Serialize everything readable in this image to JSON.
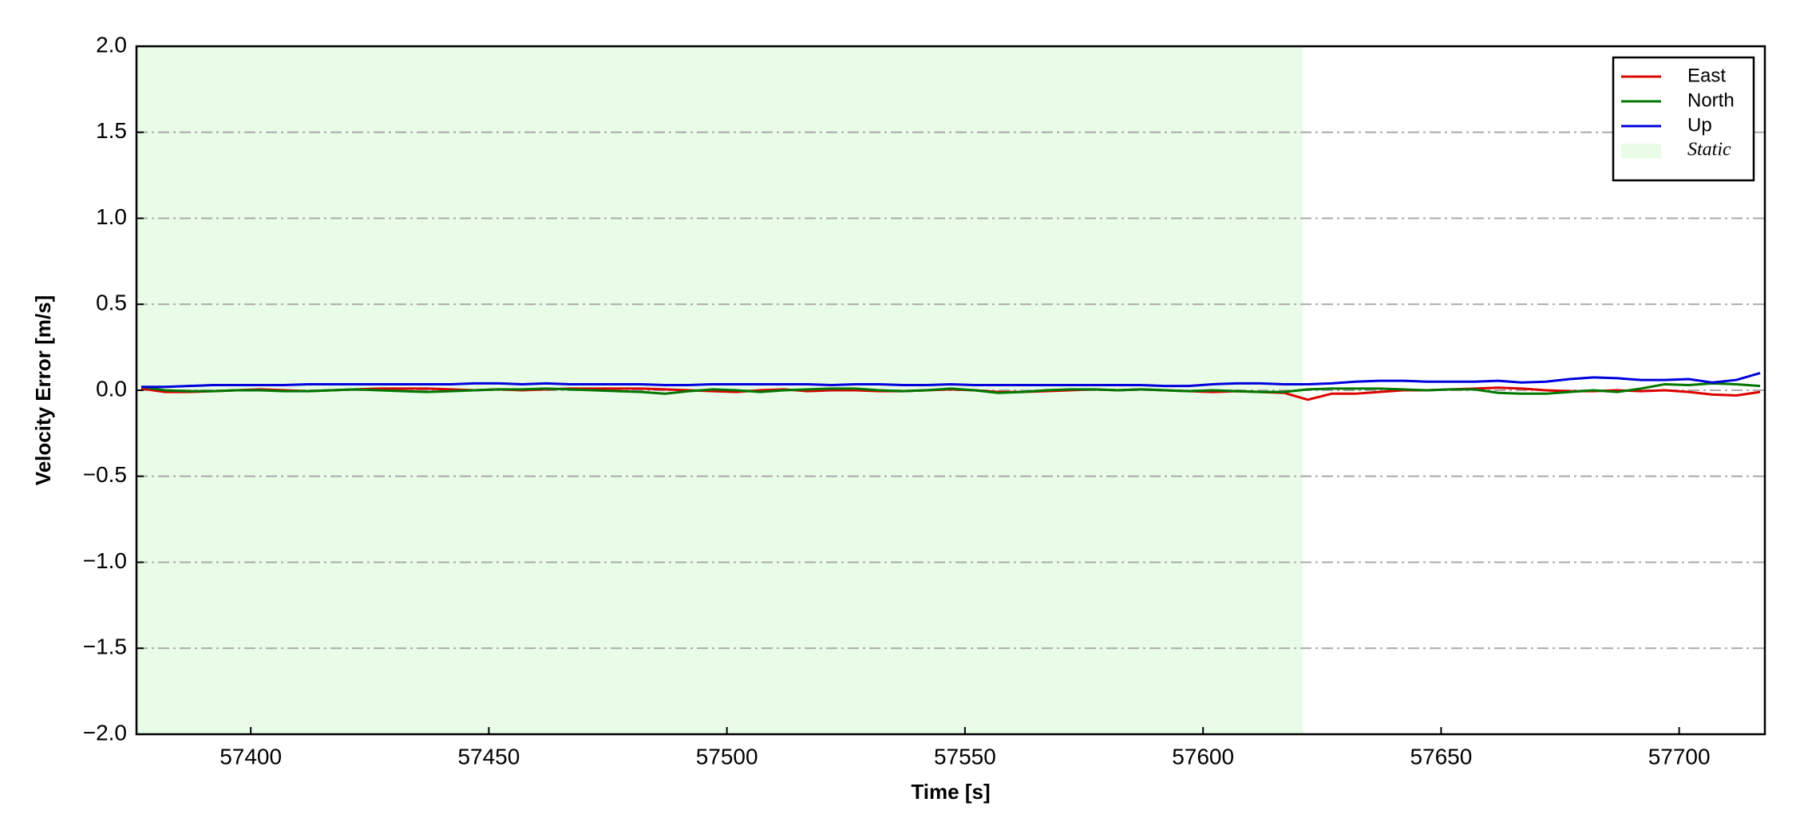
{
  "chart_data": {
    "type": "line",
    "xlabel": "Time [s]",
    "ylabel": "Velocity Error [m/s]",
    "xlim": [
      57376,
      57718
    ],
    "ylim": [
      -2,
      2
    ],
    "xticks": [
      57400,
      57450,
      57500,
      57550,
      57600,
      57650,
      57700
    ],
    "yticks": [
      {
        "value": 2,
        "label": "2.0"
      },
      1.5,
      {
        "value": 1,
        "label": "1.0"
      },
      0.5,
      {
        "value": 0,
        "label": "0.0"
      },
      {
        "value": -0.5,
        "label": "−0.5"
      },
      {
        "value": -1,
        "label": "−1.0"
      },
      {
        "value": -1.5,
        "label": "−1.5"
      },
      {
        "value": -2,
        "label": "−2.0"
      }
    ],
    "grid": true,
    "legend": "upper right",
    "static_region": {
      "label": "Static",
      "x": [
        57376,
        57621
      ],
      "color": "#e8fce8"
    },
    "x": [
      57377,
      57382,
      57387,
      57392,
      57397,
      57402,
      57407,
      57412,
      57417,
      57422,
      57427,
      57432,
      57437,
      57442,
      57447,
      57452,
      57457,
      57462,
      57467,
      57472,
      57477,
      57482,
      57487,
      57492,
      57497,
      57502,
      57507,
      57512,
      57517,
      57522,
      57527,
      57532,
      57537,
      57542,
      57547,
      57552,
      57557,
      57562,
      57567,
      57572,
      57577,
      57582,
      57587,
      57592,
      57597,
      57602,
      57607,
      57612,
      57617,
      57622,
      57627,
      57632,
      57637,
      57642,
      57647,
      57652,
      57657,
      57662,
      57667,
      57672,
      57677,
      57682,
      57687,
      57692,
      57697,
      57702,
      57707,
      57712,
      57717
    ],
    "series": [
      {
        "name": "East",
        "color": "#dd0000",
        "values": [
          0.01,
          -0.01,
          -0.01,
          -0.005,
          0,
          0.005,
          0,
          -0.005,
          0,
          0.005,
          0.01,
          0.01,
          0.01,
          0.005,
          0,
          0.005,
          0,
          0.005,
          0.01,
          0.01,
          0.01,
          0.01,
          0.005,
          0,
          -0.005,
          -0.01,
          0,
          0.005,
          -0.005,
          0,
          0,
          -0.005,
          -0.005,
          0,
          0.005,
          0,
          -0.01,
          -0.01,
          -0.005,
          0,
          0.005,
          0,
          0.005,
          0,
          -0.005,
          -0.01,
          -0.005,
          -0.01,
          -0.015,
          -0.055,
          -0.02,
          -0.02,
          -0.01,
          0,
          0,
          0.005,
          0.01,
          0.015,
          0.01,
          0,
          -0.005,
          -0.005,
          0,
          -0.005,
          0,
          -0.01,
          -0.025,
          -0.03,
          -0.01
        ]
      },
      {
        "name": "North",
        "color": "#007700",
        "values": [
          0.02,
          0,
          -0.005,
          -0.005,
          0,
          0,
          -0.005,
          -0.005,
          0,
          0.005,
          0,
          -0.005,
          -0.01,
          -0.005,
          0,
          0.005,
          0.005,
          0.01,
          0.005,
          0,
          -0.005,
          -0.01,
          -0.02,
          -0.005,
          0.005,
          0,
          -0.01,
          0,
          0.005,
          0.01,
          0.01,
          0,
          -0.005,
          0,
          0.01,
          0,
          -0.015,
          -0.01,
          0,
          0.005,
          0.005,
          0,
          0.005,
          0,
          -0.005,
          0,
          -0.005,
          -0.01,
          -0.01,
          0.005,
          0.01,
          0.01,
          0.01,
          0.005,
          0,
          0.005,
          0.005,
          -0.015,
          -0.02,
          -0.02,
          -0.01,
          0,
          -0.01,
          0.01,
          0.035,
          0.03,
          0.04,
          0.035,
          0.025
        ]
      },
      {
        "name": "Up",
        "color": "#0000dd",
        "values": [
          0.02,
          0.02,
          0.025,
          0.03,
          0.03,
          0.03,
          0.03,
          0.035,
          0.035,
          0.035,
          0.035,
          0.035,
          0.035,
          0.035,
          0.04,
          0.04,
          0.035,
          0.04,
          0.035,
          0.035,
          0.035,
          0.035,
          0.03,
          0.03,
          0.035,
          0.035,
          0.035,
          0.035,
          0.035,
          0.03,
          0.035,
          0.035,
          0.03,
          0.03,
          0.035,
          0.03,
          0.03,
          0.03,
          0.03,
          0.03,
          0.03,
          0.03,
          0.03,
          0.025,
          0.025,
          0.035,
          0.04,
          0.04,
          0.035,
          0.035,
          0.04,
          0.05,
          0.055,
          0.055,
          0.05,
          0.05,
          0.05,
          0.055,
          0.045,
          0.05,
          0.065,
          0.075,
          0.07,
          0.06,
          0.06,
          0.065,
          0.045,
          0.06,
          0.1
        ]
      }
    ]
  }
}
